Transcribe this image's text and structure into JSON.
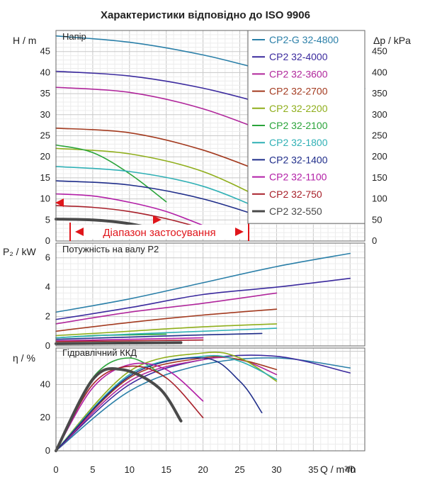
{
  "chart_data": [
    {
      "type": "line",
      "title": "Характеристики відповідно до ISO 9906",
      "panel_title": "Напір",
      "xlabel": "Q / m³/h",
      "ylabel": "H / m",
      "y2label": "Δp / kPa",
      "xlim": [
        0,
        42
      ],
      "ylim": [
        0,
        50
      ],
      "y2lim": [
        0,
        500
      ],
      "x_ticks": [
        0,
        5,
        10,
        15,
        20,
        25,
        30,
        35,
        40
      ],
      "y_ticks": [
        0,
        5,
        10,
        15,
        20,
        25,
        30,
        35,
        40,
        45
      ],
      "y2_ticks": [
        0,
        50,
        100,
        150,
        200,
        250,
        300,
        350,
        400,
        450
      ],
      "grid": true,
      "legend_position": "top-right",
      "operating_range_label": "Діапазон застосування",
      "series": [
        {
          "name": "CP2-G 32-4800",
          "color": "#2a7fa8",
          "x": [
            0,
            10,
            20,
            30,
            42
          ],
          "y": [
            48.7,
            47.2,
            44.2,
            40.0,
            36.2
          ]
        },
        {
          "name": "CP2 32-4000",
          "color": "#3b2a9e",
          "x": [
            0,
            10,
            20,
            30,
            40
          ],
          "y": [
            40.3,
            39.2,
            36.3,
            31.8,
            26.6
          ]
        },
        {
          "name": "CP2 32-3600",
          "color": "#b0269b",
          "x": [
            0,
            10,
            20,
            30
          ],
          "y": [
            36.5,
            35.3,
            31.4,
            25.0
          ]
        },
        {
          "name": "CP2 32-2700",
          "color": "#a33a1f",
          "x": [
            0,
            10,
            20,
            30
          ],
          "y": [
            26.8,
            25.7,
            21.6,
            15.1
          ]
        },
        {
          "name": "CP2 32-2200",
          "color": "#8fae1b",
          "x": [
            0,
            10,
            20,
            30
          ],
          "y": [
            22.0,
            20.7,
            16.5,
            8.4
          ]
        },
        {
          "name": "CP2 32-2100",
          "color": "#2aa43a",
          "x": [
            0,
            5,
            10,
            15
          ],
          "y": [
            22.8,
            21.0,
            16.0,
            9.3
          ]
        },
        {
          "name": "CP2 32-1800",
          "color": "#2fb0b5",
          "x": [
            0,
            10,
            20,
            30
          ],
          "y": [
            17.7,
            16.5,
            13.0,
            6.0
          ]
        },
        {
          "name": "CP2 32-1400",
          "color": "#1f2d8a",
          "x": [
            0,
            10,
            20,
            30
          ],
          "y": [
            14.3,
            13.3,
            10.0,
            4.6
          ]
        },
        {
          "name": "CP2 32-1100",
          "color": "#b21ea6",
          "x": [
            0,
            5,
            10,
            15,
            20
          ],
          "y": [
            11.2,
            10.7,
            9.2,
            7.0,
            3.7
          ]
        },
        {
          "name": "CP2 32-750",
          "color": "#a8202a",
          "x": [
            0,
            5,
            10,
            15,
            20
          ],
          "y": [
            8.4,
            8.0,
            7.0,
            5.3,
            3.0
          ]
        },
        {
          "name": "CP2 32-550",
          "color": "#4a4a4a",
          "x": [
            0,
            5,
            10,
            15,
            17
          ],
          "y": [
            5.2,
            5.0,
            4.1,
            2.2,
            1.3
          ]
        }
      ]
    },
    {
      "type": "line",
      "panel_title": "Потужність на валу P2",
      "ylabel": "P₂ / kW",
      "xlim": [
        0,
        42
      ],
      "ylim": [
        0,
        7
      ],
      "y_ticks": [
        0,
        2,
        4,
        6
      ],
      "grid": true,
      "series": [
        {
          "name": "CP2-G 32-4800",
          "color": "#2a7fa8",
          "x": [
            0,
            10,
            20,
            30,
            40
          ],
          "y": [
            2.3,
            3.2,
            4.3,
            5.4,
            6.3
          ]
        },
        {
          "name": "CP2 32-4000",
          "color": "#3b2a9e",
          "x": [
            0,
            10,
            20,
            30,
            40
          ],
          "y": [
            1.8,
            2.6,
            3.5,
            4.0,
            4.6
          ]
        },
        {
          "name": "CP2 32-3600",
          "color": "#b0269b",
          "x": [
            0,
            10,
            20,
            30
          ],
          "y": [
            1.5,
            2.3,
            2.9,
            3.6
          ]
        },
        {
          "name": "CP2 32-2700",
          "color": "#a33a1f",
          "x": [
            0,
            10,
            20,
            30
          ],
          "y": [
            1.0,
            1.6,
            2.1,
            2.5
          ]
        },
        {
          "name": "CP2 32-2200",
          "color": "#8fae1b",
          "x": [
            0,
            10,
            20,
            30
          ],
          "y": [
            0.7,
            1.0,
            1.3,
            1.5
          ]
        },
        {
          "name": "CP2 32-2100",
          "color": "#2aa43a",
          "x": [
            0,
            5,
            10,
            15
          ],
          "y": [
            0.55,
            0.7,
            0.75,
            0.8
          ]
        },
        {
          "name": "CP2 32-1800",
          "color": "#2fb0b5",
          "x": [
            0,
            10,
            20,
            30
          ],
          "y": [
            0.55,
            0.8,
            1.0,
            1.2
          ]
        },
        {
          "name": "CP2 32-1400",
          "color": "#1f2d8a",
          "x": [
            0,
            10,
            20,
            28
          ],
          "y": [
            0.45,
            0.6,
            0.75,
            0.85
          ]
        },
        {
          "name": "CP2 32-1100",
          "color": "#b21ea6",
          "x": [
            0,
            10,
            20
          ],
          "y": [
            0.35,
            0.45,
            0.55
          ]
        },
        {
          "name": "CP2 32-750",
          "color": "#a8202a",
          "x": [
            0,
            10,
            20
          ],
          "y": [
            0.3,
            0.35,
            0.4
          ]
        },
        {
          "name": "CP2 32-550",
          "color": "#4a4a4a",
          "x": [
            0,
            10,
            17
          ],
          "y": [
            0.15,
            0.2,
            0.22
          ]
        }
      ]
    },
    {
      "type": "line",
      "panel_title": "Гідравлічний ККД",
      "xlabel": "Q / m³/h",
      "ylabel": "η / %",
      "xlim": [
        0,
        42
      ],
      "ylim": [
        0,
        62
      ],
      "x_ticks": [
        0,
        5,
        10,
        15,
        20,
        25,
        30,
        35,
        40
      ],
      "y_ticks": [
        0,
        20,
        40
      ],
      "grid": true,
      "series": [
        {
          "name": "CP2-G 32-4800",
          "color": "#2a7fa8",
          "x": [
            0,
            10,
            20,
            30,
            40
          ],
          "y": [
            0,
            36,
            52,
            56,
            50
          ]
        },
        {
          "name": "CP2 32-4000",
          "color": "#3b2a9e",
          "x": [
            0,
            10,
            20,
            30,
            40
          ],
          "y": [
            0,
            40,
            55,
            57,
            47
          ]
        },
        {
          "name": "CP2 32-3600",
          "color": "#b0269b",
          "x": [
            0,
            10,
            20,
            25,
            30
          ],
          "y": [
            0,
            42,
            55,
            55,
            46
          ]
        },
        {
          "name": "CP2 32-2700",
          "color": "#a33a1f",
          "x": [
            0,
            10,
            20,
            25,
            30
          ],
          "y": [
            0,
            44,
            56,
            55,
            49
          ]
        },
        {
          "name": "CP2 32-2200",
          "color": "#8fae1b",
          "x": [
            0,
            10,
            20,
            25,
            30
          ],
          "y": [
            0,
            48,
            59,
            56,
            42
          ]
        },
        {
          "name": "CP2 32-2100",
          "color": "#2aa43a",
          "x": [
            0,
            5,
            10,
            15
          ],
          "y": [
            0,
            44,
            56,
            44
          ]
        },
        {
          "name": "CP2 32-1800",
          "color": "#2fb0b5",
          "x": [
            0,
            10,
            20,
            25,
            30
          ],
          "y": [
            0,
            46,
            57,
            54,
            43
          ]
        },
        {
          "name": "CP2 32-1400",
          "color": "#1f2d8a",
          "x": [
            0,
            10,
            20,
            25,
            28
          ],
          "y": [
            0,
            45,
            56,
            42,
            23
          ]
        },
        {
          "name": "CP2 32-1100",
          "color": "#b21ea6",
          "x": [
            0,
            5,
            10,
            15,
            20
          ],
          "y": [
            0,
            38,
            52,
            49,
            30
          ]
        },
        {
          "name": "CP2 32-750",
          "color": "#a8202a",
          "x": [
            0,
            5,
            10,
            15,
            20
          ],
          "y": [
            0,
            40,
            51,
            44,
            20
          ]
        },
        {
          "name": "CP2 32-550",
          "color": "#4a4a4a",
          "x": [
            0,
            5,
            9,
            14,
            17
          ],
          "y": [
            0,
            43,
            49,
            38,
            18
          ]
        }
      ]
    }
  ]
}
